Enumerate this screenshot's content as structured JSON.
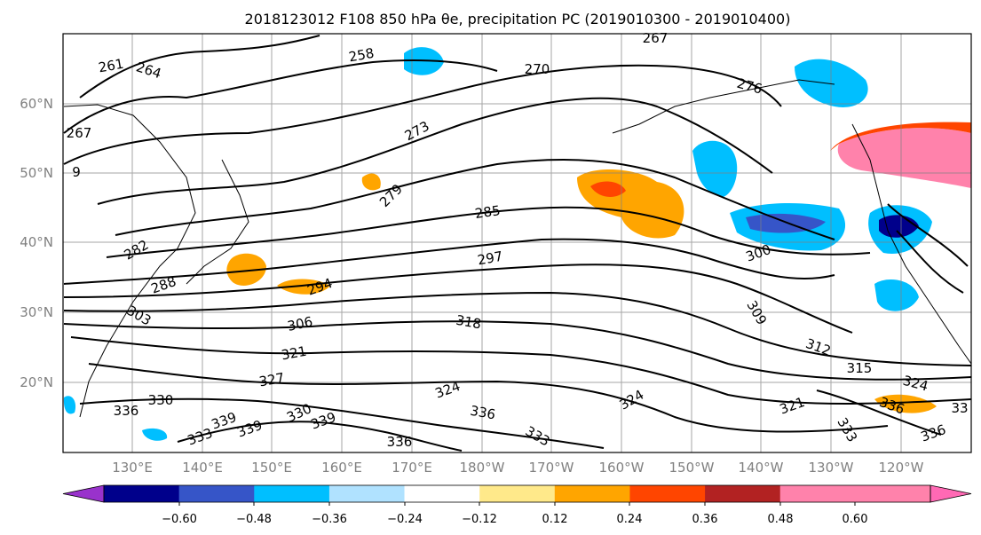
{
  "title": "2018123012 F108 850 hPa θe, precipitation PC (2019010300 - 2019010400)",
  "map": {
    "lat_labels": [
      "60°N",
      "50°N",
      "40°N",
      "30°N",
      "20°N"
    ],
    "lon_labels": [
      "130°E",
      "140°E",
      "150°E",
      "160°E",
      "170°E",
      "180°W",
      "170°W",
      "160°W",
      "150°W",
      "140°W",
      "130°W",
      "120°W"
    ],
    "contour_labels": [
      "261",
      "264",
      "258",
      "267",
      "270",
      "267",
      "276",
      "273",
      "279",
      "282",
      "285",
      "288",
      "294",
      "297",
      "300",
      "303",
      "306",
      "309",
      "312",
      "315",
      "318",
      "321",
      "324",
      "324",
      "327",
      "330",
      "330",
      "333",
      "333",
      "336",
      "336",
      "336",
      "339",
      "339",
      "339",
      "336",
      "336",
      "33",
      "333",
      "324",
      "321",
      "9"
    ]
  },
  "colorbar": {
    "colors": [
      "#9932cc",
      "#00008b",
      "#3655c8",
      "#00bfff",
      "#b0e2ff",
      "#ffffff",
      "#ffe98a",
      "#ffa500",
      "#ff4500",
      "#b22222",
      "#ff82ab",
      "#ff69b4"
    ],
    "tick_labels": [
      "−0.60",
      "−0.48",
      "−0.36",
      "−0.24",
      "−0.12",
      "0.12",
      "0.24",
      "0.36",
      "0.48",
      "0.60"
    ]
  }
}
